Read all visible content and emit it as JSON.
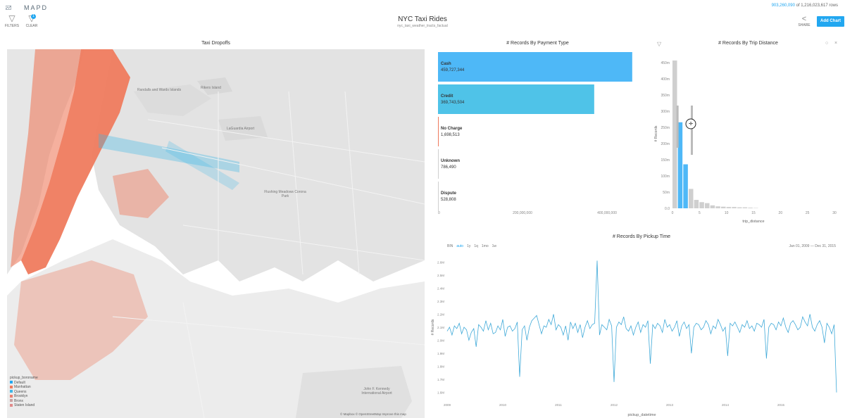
{
  "header": {
    "logo_text": "MAPD",
    "filters_label": "FILTERS",
    "clear_label": "CLEAR",
    "clear_badge": "1",
    "title": "NYC Taxi Rides",
    "subtitle": "nyc_taxi_weather_tracts_factual",
    "row_count_highlight": "903,260,090",
    "row_count_rest": "of 1,216,023,617 rows",
    "share_label": "SHARE",
    "add_chart_label": "Add Chart"
  },
  "map_panel": {
    "title": "Taxi Dropoffs",
    "legend_title": "pickup_boroname",
    "legend": [
      {
        "label": "Default",
        "color": "#22a7f0"
      },
      {
        "label": "Manhattan",
        "color": "#ef7b5e"
      },
      {
        "label": "Queens",
        "color": "#3fb6e6"
      },
      {
        "label": "Brooklyn",
        "color": "#ea8070"
      },
      {
        "label": "Bronx",
        "color": "#c9a0a0"
      },
      {
        "label": "Staten Island",
        "color": "#e08a8a"
      }
    ],
    "attribution": "© Mapbox  © OpenStreetMap  Improve this map",
    "place_labels": [
      "Rikers Island",
      "LaGuardia Airport",
      "Flushing Meadows Corona Park",
      "John F. Kennedy International Airport",
      "Randalls and Wards Islands"
    ]
  },
  "colors": {
    "accent": "#22a7f0",
    "bar_cyan": "#4fc3e8",
    "bar_blue": "#4eb8f7",
    "manhattan": "#ef7b5e",
    "gray_bar": "#cfcfcf",
    "line": "#3fa9d8"
  },
  "chart_data": [
    {
      "type": "bar",
      "title": "# Records By Payment Type",
      "orientation": "horizontal",
      "categories": [
        "Cash",
        "Credit",
        "No Charge",
        "Unknown",
        "Dispute"
      ],
      "values": [
        459727344,
        369743504,
        1698513,
        786490,
        528808
      ],
      "value_labels": [
        "459,727,344",
        "369,743,504",
        "1,698,513",
        "786,490",
        "528,808"
      ],
      "xticks": [
        "0",
        "200,000,000",
        "400,000,000"
      ],
      "xlim": [
        0,
        470000000
      ]
    },
    {
      "type": "bar",
      "title": "# Records By Trip Distance",
      "xlabel": "trip_distance",
      "ylabel": "# Records",
      "bins_x": [
        0,
        1,
        2,
        3,
        4,
        5,
        6,
        7,
        8,
        9,
        10,
        11,
        12,
        13,
        14,
        15
      ],
      "values": [
        457000000,
        266000000,
        136000000,
        60000000,
        26000000,
        19000000,
        16000000,
        9000000,
        6000000,
        5000000,
        4000000,
        4000000,
        3000000,
        3000000,
        2000000,
        1000000
      ],
      "selected_range": [
        1,
        3
      ],
      "xticks": [
        "0",
        "5",
        "10",
        "15",
        "20",
        "25",
        "30"
      ],
      "yticks": [
        "0.0",
        "50m",
        "100m",
        "150m",
        "200m",
        "250m",
        "300m",
        "350m",
        "400m",
        "450m"
      ],
      "ylim": [
        0,
        470000000
      ],
      "xlim": [
        0,
        30
      ]
    },
    {
      "type": "line",
      "title": "# Records By Pickup Time",
      "xlabel": "pickup_datetime",
      "ylabel": "# Records",
      "bin_options": [
        "BIN",
        "auto",
        "1y",
        "1q",
        "1mo",
        "1w"
      ],
      "active_bin": "auto",
      "date_range_start": "Jan 01, 2009",
      "date_range_sep": "—",
      "date_range_end": "Dec 31, 2015",
      "xticks": [
        "2009",
        "2010",
        "2011",
        "2012",
        "2013",
        "2014",
        "2015"
      ],
      "yticks": [
        "1.6M",
        "1.7M",
        "1.8M",
        "1.9M",
        "2.0M",
        "2.1M",
        "2.2M",
        "2.3M",
        "2.4M",
        "2.5M",
        "2.6M"
      ],
      "ylim": [
        1.55,
        2.65
      ],
      "y_unit": "millions of records per week",
      "series": [
        {
          "values": [
            2.07,
            2.1,
            2.04,
            2.11,
            2.09,
            2.13,
            2.05,
            2.1,
            2.08,
            2.0,
            2.06,
            2.09,
            1.95,
            2.12,
            2.1,
            2.07,
            2.15,
            2.08,
            2.13,
            2.05,
            2.06,
            2.11,
            2.08,
            2.16,
            2.03,
            2.1,
            2.11,
            2.07,
            2.09,
            2.14,
            1.72,
            2.08,
            2.11,
            2.0,
            2.1,
            2.15,
            2.17,
            2.19,
            2.12,
            2.05,
            2.11,
            2.1,
            2.16,
            2.12,
            2.2,
            2.08,
            2.12,
            2.1,
            2.04,
            2.11,
            2.0,
            2.14,
            2.09,
            2.13,
            2.06,
            2.12,
            2.02,
            2.1,
            2.15,
            2.09,
            2.12,
            2.13,
            2.61,
            2.04,
            2.12,
            2.1,
            2.08,
            2.16,
            2.11,
            1.68,
            2.1,
            2.14,
            2.12,
            2.18,
            2.09,
            2.07,
            2.11,
            2.04,
            2.1,
            2.14,
            2.06,
            2.12,
            2.1,
            2.15,
            1.82,
            2.12,
            2.09,
            2.13,
            2.11,
            2.06,
            2.16,
            2.1,
            2.12,
            2.07,
            2.1,
            2.15,
            2.03,
            2.11,
            2.14,
            2.09,
            2.12,
            1.9,
            2.1,
            2.13,
            2.12,
            2.08,
            2.1,
            2.15,
            2.12,
            2.05,
            2.11,
            2.09,
            2.16,
            2.12,
            2.07,
            2.1,
            1.88,
            2.13,
            2.11,
            2.14,
            2.1,
            2.06,
            2.12,
            2.1,
            2.15,
            2.09,
            2.11,
            2.07,
            2.13,
            2.12,
            2.1,
            2.16,
            1.86,
            2.1,
            2.13,
            2.12,
            2.08,
            2.14,
            2.11,
            2.17,
            2.1,
            2.06,
            2.13,
            2.15,
            2.12,
            2.08,
            2.1,
            2.18,
            2.14,
            2.11,
            2.2,
            2.1,
            2.07,
            2.12,
            2.15,
            2.1,
            1.98,
            2.13,
            2.1,
            2.05,
            2.12,
            1.6
          ]
        }
      ]
    }
  ]
}
